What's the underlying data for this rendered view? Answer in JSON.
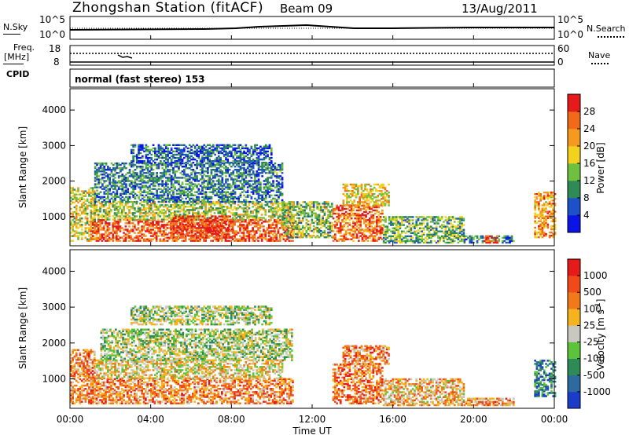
{
  "header": {
    "station": "Zhongshan Station (fitACF)",
    "beam": "Beam 09",
    "date": "13/Aug/2011"
  },
  "nsky_panel": {
    "left_label": "N.Sky",
    "left_ticks": [
      "10^5",
      "10^0"
    ],
    "right_label": "N.Search",
    "right_ticks": [
      "10^5",
      "10^0"
    ]
  },
  "freq_panel": {
    "left_label": "Freq.",
    "left_unit": "[MHz]",
    "left_ticks": [
      "18",
      "8"
    ],
    "right_label": "Nave",
    "right_ticks": [
      "60",
      "0"
    ]
  },
  "cpid": {
    "label": "CPID",
    "value": "normal (fast stereo) 153"
  },
  "chart_data": [
    {
      "type": "heatmap",
      "name": "power",
      "xlabel": "",
      "ylabel": "Slant Range [km]",
      "y_ticks": [
        "1000",
        "2000",
        "3000",
        "4000"
      ],
      "ylim": [
        180,
        4600
      ],
      "x_range_hours": [
        0,
        24
      ],
      "colorbar": {
        "label": "Power [dB]",
        "ticks": [
          "4",
          "8",
          "12",
          "16",
          "20",
          "24",
          "28"
        ],
        "colors": [
          "#0a14e6",
          "#1e50c8",
          "#2e8b57",
          "#70c040",
          "#f2d21e",
          "#f59a1e",
          "#f06a1a",
          "#e61a1a"
        ]
      },
      "echo_regions": [
        {
          "t0": 0.0,
          "t1": 1.2,
          "r0": 300,
          "r1": 1800,
          "v": 0.55
        },
        {
          "t0": 1.0,
          "t1": 11.0,
          "r0": 300,
          "r1": 900,
          "v": 0.85
        },
        {
          "t0": 1.0,
          "t1": 11.0,
          "r0": 900,
          "r1": 1400,
          "v": 0.5
        },
        {
          "t0": 1.2,
          "t1": 10.5,
          "r0": 1400,
          "r1": 2500,
          "v": 0.28
        },
        {
          "t0": 5.0,
          "t1": 8.0,
          "r0": 400,
          "r1": 1000,
          "v": 0.9
        },
        {
          "t0": 10.5,
          "t1": 13.0,
          "r0": 400,
          "r1": 1400,
          "v": 0.45
        },
        {
          "t0": 13.0,
          "t1": 15.5,
          "r0": 300,
          "r1": 1300,
          "v": 0.8
        },
        {
          "t0": 13.5,
          "t1": 15.8,
          "r0": 1300,
          "r1": 1900,
          "v": 0.62
        },
        {
          "t0": 15.5,
          "t1": 19.5,
          "r0": 250,
          "r1": 1000,
          "v": 0.4
        },
        {
          "t0": 19.5,
          "t1": 22.0,
          "r0": 250,
          "r1": 450,
          "v": 0.3
        },
        {
          "t0": 20.5,
          "t1": 21.2,
          "r0": 250,
          "r1": 450,
          "v": 0.9
        },
        {
          "t0": 23.0,
          "t1": 24.0,
          "r0": 400,
          "r1": 1700,
          "v": 0.7
        },
        {
          "t0": 3.0,
          "t1": 10.0,
          "r0": 2500,
          "r1": 3000,
          "v": 0.2
        }
      ]
    },
    {
      "type": "heatmap",
      "name": "velocity",
      "xlabel": "Time UT",
      "ylabel": "Slant Range [km]",
      "x_ticks": [
        "00:00",
        "04:00",
        "08:00",
        "12:00",
        "16:00",
        "20:00",
        "00:00"
      ],
      "y_ticks": [
        "1000",
        "2000",
        "3000",
        "4000"
      ],
      "ylim": [
        180,
        4600
      ],
      "x_range_hours": [
        0,
        24
      ],
      "colorbar": {
        "label": "Velocity [m s",
        "label_sup": "-1",
        "label_end": "]",
        "ticks": [
          "1000",
          "500",
          "100",
          "25",
          "-25",
          "-100",
          "-500",
          "-1000"
        ],
        "colors": [
          "#1a3cc8",
          "#2e6a9e",
          "#2e8b57",
          "#5cc43a",
          "#c8c8c0",
          "#f5b41e",
          "#f07a1a",
          "#f04a1a",
          "#e61a1a"
        ]
      },
      "echo_regions": [
        {
          "t0": 0.0,
          "t1": 1.2,
          "r0": 300,
          "r1": 1800,
          "v": 0.7
        },
        {
          "t0": 1.0,
          "t1": 11.0,
          "r0": 300,
          "r1": 1000,
          "v": 0.72
        },
        {
          "t0": 1.2,
          "t1": 10.5,
          "r0": 1000,
          "r1": 1500,
          "v": 0.55
        },
        {
          "t0": 1.5,
          "t1": 11.0,
          "r0": 1500,
          "r1": 2400,
          "v": 0.45
        },
        {
          "t0": 13.0,
          "t1": 15.5,
          "r0": 300,
          "r1": 1400,
          "v": 0.75
        },
        {
          "t0": 13.5,
          "t1": 15.8,
          "r0": 1400,
          "r1": 1900,
          "v": 0.72
        },
        {
          "t0": 15.5,
          "t1": 19.5,
          "r0": 250,
          "r1": 1000,
          "v": 0.62
        },
        {
          "t0": 19.5,
          "t1": 22.0,
          "r0": 250,
          "r1": 450,
          "v": 0.68
        },
        {
          "t0": 23.0,
          "t1": 24.0,
          "r0": 500,
          "r1": 1500,
          "v": 0.2
        },
        {
          "t0": 3.0,
          "t1": 10.0,
          "r0": 2500,
          "r1": 3000,
          "v": 0.45
        }
      ]
    }
  ]
}
